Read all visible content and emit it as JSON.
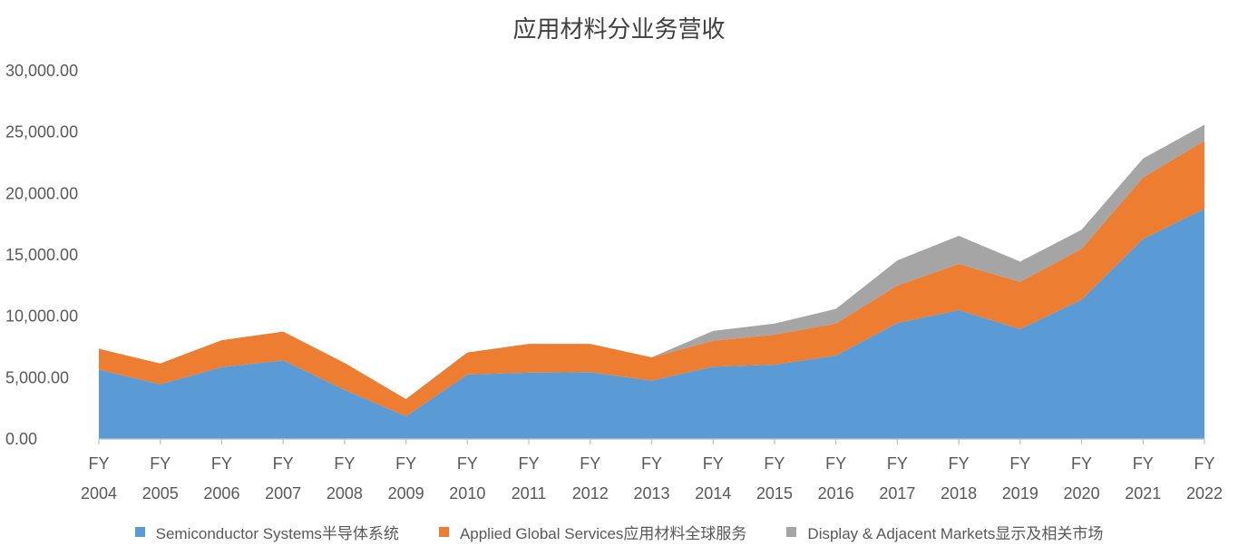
{
  "chart_data": {
    "type": "area",
    "stacked": true,
    "title": "应用材料分业务营收",
    "xlabel": "",
    "ylabel": "",
    "ylim": [
      0,
      30000
    ],
    "y_ticks": [
      "0.00",
      "5,000.00",
      "10,000.00",
      "15,000.00",
      "20,000.00",
      "25,000.00",
      "30,000.00"
    ],
    "categories": [
      [
        "FY",
        "2004"
      ],
      [
        "FY",
        "2005"
      ],
      [
        "FY",
        "2006"
      ],
      [
        "FY",
        "2007"
      ],
      [
        "FY",
        "2008"
      ],
      [
        "FY",
        "2009"
      ],
      [
        "FY",
        "2010"
      ],
      [
        "FY",
        "2011"
      ],
      [
        "FY",
        "2012"
      ],
      [
        "FY",
        "2013"
      ],
      [
        "FY",
        "2014"
      ],
      [
        "FY",
        "2015"
      ],
      [
        "FY",
        "2016"
      ],
      [
        "FY",
        "2017"
      ],
      [
        "FY",
        "2018"
      ],
      [
        "FY",
        "2019"
      ],
      [
        "FY",
        "2020"
      ],
      [
        "FY",
        "2021"
      ],
      [
        "FY",
        "2022"
      ]
    ],
    "series": [
      {
        "name": "Semiconductor Systems半导体系统",
        "color": "#5B9BD5",
        "values": [
          5650,
          4450,
          5850,
          6400,
          4000,
          1850,
          5250,
          5400,
          5450,
          4750,
          5900,
          6050,
          6800,
          9450,
          10500,
          8950,
          11350,
          16300,
          18750
        ]
      },
      {
        "name": "Applied Global Services应用材料全球服务",
        "color": "#ED7D31",
        "values": [
          1700,
          1700,
          2200,
          2350,
          2200,
          1400,
          1800,
          2350,
          2300,
          1900,
          2100,
          2450,
          2600,
          3050,
          3750,
          3850,
          4150,
          5000,
          5550
        ]
      },
      {
        "name": "Display & Adjacent Markets显示及相关市场",
        "color": "#A5A5A5",
        "values": [
          0,
          0,
          0,
          0,
          0,
          0,
          0,
          0,
          0,
          0,
          800,
          900,
          1200,
          2050,
          2300,
          1650,
          1550,
          1550,
          1300
        ]
      }
    ],
    "legend_position": "bottom",
    "grid": false
  }
}
